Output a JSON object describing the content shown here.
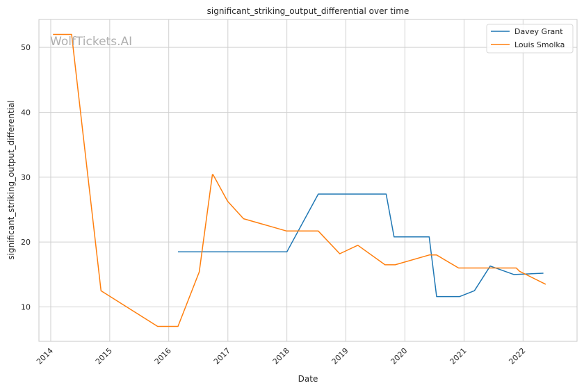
{
  "chart_data": {
    "type": "line",
    "title": "significant_striking_output_differential over time",
    "xlabel": "Date",
    "ylabel": "significant_striking_output_differential",
    "watermark": "WolfTickets.AI",
    "x_ticks": [
      "2014",
      "2015",
      "2016",
      "2017",
      "2018",
      "2019",
      "2020",
      "2021",
      "2022"
    ],
    "y_ticks": [
      10,
      20,
      30,
      40,
      50
    ],
    "xlim": [
      "2013-10-20",
      "2022-12-01"
    ],
    "ylim": [
      4.7,
      54.3
    ],
    "grid": true,
    "legend_position": "top-right",
    "colors": {
      "Davey Grant": "#1f77b4",
      "Louis Smolka": "#ff7f0e",
      "grid": "#d0d0d0",
      "spine": "#c8c8c8"
    },
    "series": [
      {
        "name": "Davey Grant",
        "color": "#1f77b4",
        "points": [
          [
            "2016-02-27",
            18.5
          ],
          [
            "2018-01-01",
            18.5
          ],
          [
            "2018-07-14",
            27.4
          ],
          [
            "2019-09-07",
            27.4
          ],
          [
            "2019-10-26",
            20.8
          ],
          [
            "2020-05-30",
            20.8
          ],
          [
            "2020-07-15",
            11.6
          ],
          [
            "2020-12-05",
            11.6
          ],
          [
            "2021-03-06",
            12.5
          ],
          [
            "2021-06-12",
            16.3
          ],
          [
            "2021-11-06",
            15.0
          ],
          [
            "2022-05-07",
            15.2
          ]
        ]
      },
      {
        "name": "Louis Smolka",
        "color": "#ff7f0e",
        "points": [
          [
            "2014-01-15",
            52.0
          ],
          [
            "2014-05-10",
            52.0
          ],
          [
            "2014-11-08",
            12.5
          ],
          [
            "2015-10-24",
            7.0
          ],
          [
            "2016-02-27",
            7.0
          ],
          [
            "2016-07-08",
            15.4
          ],
          [
            "2016-09-27",
            30.4
          ],
          [
            "2016-10-01",
            30.4
          ],
          [
            "2016-12-30",
            26.3
          ],
          [
            "2017-04-08",
            23.6
          ],
          [
            "2017-12-30",
            21.7
          ],
          [
            "2018-07-14",
            21.7
          ],
          [
            "2018-11-24",
            18.2
          ],
          [
            "2019-03-16",
            19.5
          ],
          [
            "2019-08-31",
            16.5
          ],
          [
            "2019-11-02",
            16.5
          ],
          [
            "2020-05-30",
            18.0
          ],
          [
            "2020-07-15",
            18.0
          ],
          [
            "2020-11-28",
            16.0
          ],
          [
            "2021-11-20",
            16.0
          ],
          [
            "2021-12-10",
            15.5
          ],
          [
            "2022-05-21",
            13.5
          ]
        ]
      }
    ]
  }
}
